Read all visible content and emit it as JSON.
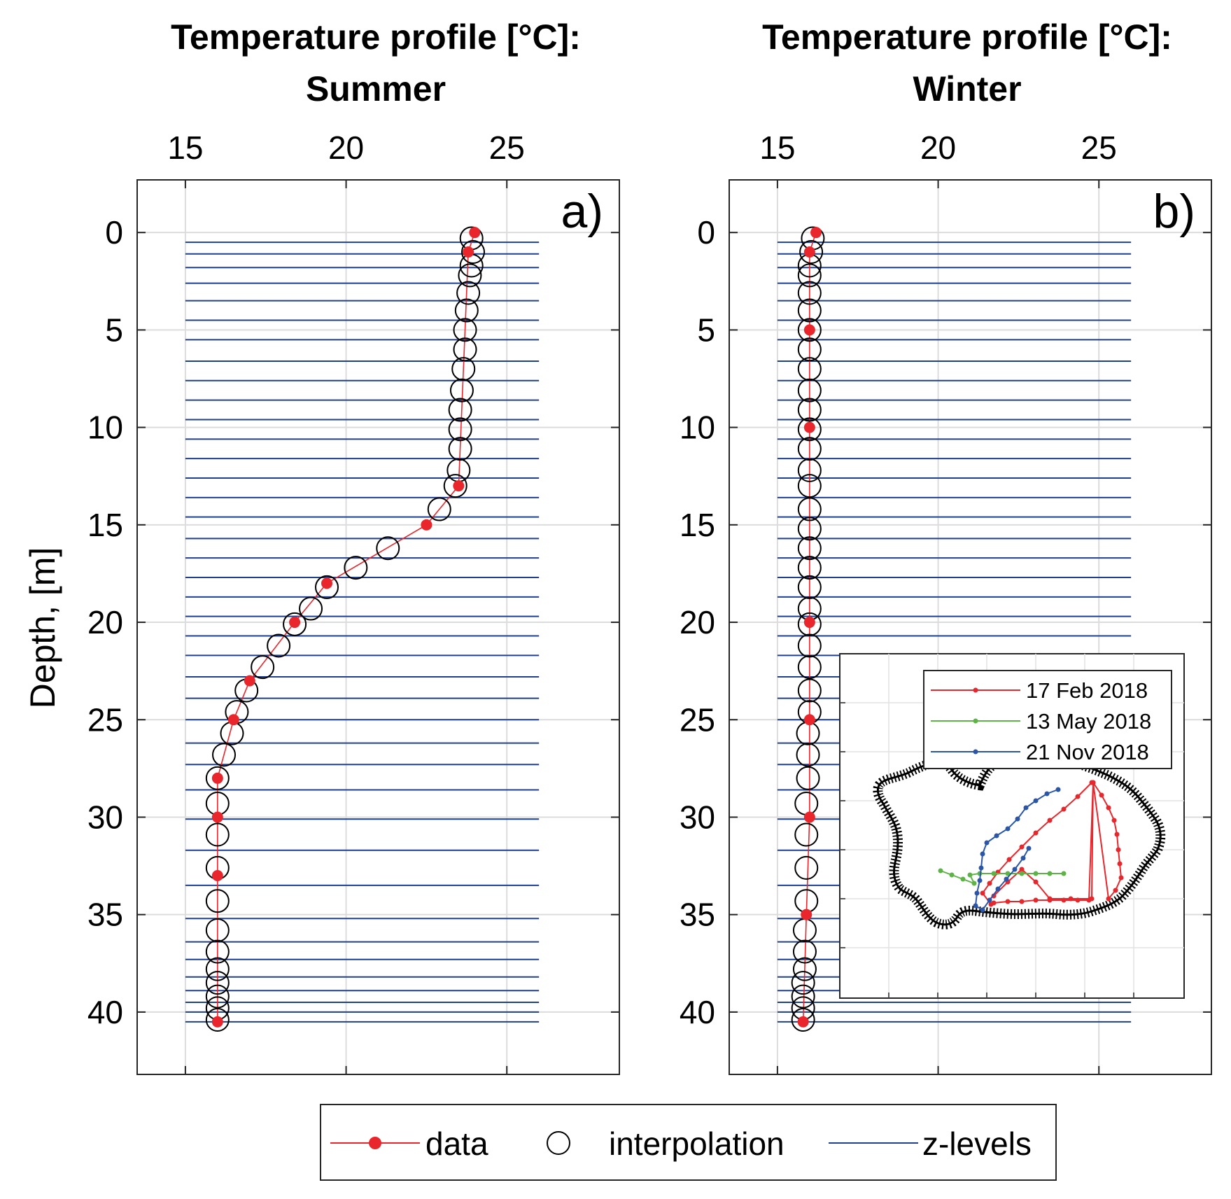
{
  "chart_data": [
    {
      "type": "line",
      "panel_label": "a)",
      "title": [
        "Temperature profile [°C]:",
        "Summer"
      ],
      "xlabel": "",
      "ylabel": "Depth, [m]",
      "xlim": [
        13.5,
        28.5
      ],
      "ylim": [
        -2.7,
        43.2
      ],
      "y_reversed": true,
      "x_axis_location": "top",
      "xticks": [
        15,
        20,
        25
      ],
      "yticks": [
        0,
        5,
        10,
        15,
        20,
        25,
        30,
        35,
        40
      ],
      "grid": true,
      "series": [
        {
          "name": "data",
          "color": "#e8262b",
          "marker": "filled-dot",
          "points": [
            [
              24.0,
              0
            ],
            [
              23.8,
              1
            ],
            [
              23.5,
              13
            ],
            [
              22.5,
              15
            ],
            [
              19.4,
              18
            ],
            [
              18.4,
              20
            ],
            [
              17.0,
              23
            ],
            [
              16.5,
              25
            ],
            [
              16.0,
              28
            ],
            [
              16.0,
              30
            ],
            [
              16.0,
              33
            ],
            [
              16.0,
              40.5
            ]
          ]
        },
        {
          "name": "interpolation",
          "color": "#000000",
          "marker": "open-circle",
          "points": [
            [
              23.9,
              0.3
            ],
            [
              23.95,
              1.0
            ],
            [
              23.9,
              1.7
            ],
            [
              23.85,
              2.2
            ],
            [
              23.8,
              3.1
            ],
            [
              23.75,
              4.0
            ],
            [
              23.7,
              5.0
            ],
            [
              23.7,
              6.0
            ],
            [
              23.65,
              7.0
            ],
            [
              23.6,
              8.1
            ],
            [
              23.55,
              9.1
            ],
            [
              23.55,
              10.1
            ],
            [
              23.55,
              11.1
            ],
            [
              23.5,
              12.2
            ],
            [
              23.4,
              13.0
            ],
            [
              22.9,
              14.2
            ],
            [
              21.3,
              16.2
            ],
            [
              20.3,
              17.2
            ],
            [
              19.4,
              18.2
            ],
            [
              18.9,
              19.3
            ],
            [
              18.4,
              20.1
            ],
            [
              17.9,
              21.2
            ],
            [
              17.4,
              22.3
            ],
            [
              16.9,
              23.5
            ],
            [
              16.6,
              24.6
            ],
            [
              16.45,
              25.7
            ],
            [
              16.2,
              26.8
            ],
            [
              16.0,
              28.0
            ],
            [
              16.0,
              29.3
            ],
            [
              16.0,
              30.9
            ],
            [
              16.0,
              32.6
            ],
            [
              16.0,
              34.3
            ],
            [
              16.0,
              35.8
            ],
            [
              16.0,
              36.9
            ],
            [
              16.0,
              37.8
            ],
            [
              16.0,
              38.5
            ],
            [
              16.0,
              39.2
            ],
            [
              16.0,
              39.8
            ],
            [
              16.0,
              40.4
            ]
          ]
        },
        {
          "name": "z-levels",
          "color": "#1f3f8f",
          "marker": "none",
          "x_range": [
            15.0,
            26.0
          ],
          "depths": [
            0.5,
            1.1,
            1.8,
            2.6,
            3.5,
            4.5,
            5.5,
            6.6,
            7.6,
            8.6,
            9.6,
            10.6,
            11.6,
            12.6,
            13.6,
            14.6,
            15.7,
            16.7,
            17.7,
            18.7,
            19.7,
            20.7,
            21.7,
            22.8,
            23.9,
            25.0,
            26.2,
            27.3,
            28.6,
            30.1,
            31.7,
            33.5,
            35.2,
            36.4,
            37.3,
            38.2,
            38.9,
            39.5,
            40.0,
            40.5
          ]
        }
      ]
    },
    {
      "type": "line",
      "panel_label": "b)",
      "title": [
        "Temperature profile [°C]:",
        "Winter"
      ],
      "xlabel": "",
      "ylabel": "",
      "xlim": [
        13.5,
        28.5
      ],
      "ylim": [
        -2.7,
        43.2
      ],
      "y_reversed": true,
      "x_axis_location": "top",
      "xticks": [
        15,
        20,
        25
      ],
      "yticks": [
        0,
        5,
        10,
        15,
        20,
        25,
        30,
        35,
        40
      ],
      "grid": true,
      "series": [
        {
          "name": "data",
          "color": "#e8262b",
          "marker": "filled-dot",
          "points": [
            [
              16.2,
              0
            ],
            [
              16.0,
              1
            ],
            [
              16.0,
              5
            ],
            [
              16.0,
              10
            ],
            [
              16.0,
              20
            ],
            [
              16.0,
              25
            ],
            [
              16.0,
              30
            ],
            [
              15.9,
              35
            ],
            [
              15.8,
              40.5
            ]
          ]
        },
        {
          "name": "interpolation",
          "color": "#000000",
          "marker": "open-circle",
          "points": [
            [
              16.1,
              0.3
            ],
            [
              16.05,
              1.0
            ],
            [
              16.0,
              1.7
            ],
            [
              16.0,
              2.2
            ],
            [
              16.0,
              3.1
            ],
            [
              16.0,
              4.0
            ],
            [
              16.0,
              5.0
            ],
            [
              16.0,
              6.0
            ],
            [
              16.0,
              7.0
            ],
            [
              16.0,
              8.1
            ],
            [
              16.0,
              9.1
            ],
            [
              16.0,
              10.1
            ],
            [
              16.0,
              11.1
            ],
            [
              16.0,
              12.2
            ],
            [
              16.0,
              13.0
            ],
            [
              16.0,
              14.2
            ],
            [
              16.0,
              15.2
            ],
            [
              16.0,
              16.2
            ],
            [
              16.0,
              17.2
            ],
            [
              16.0,
              18.2
            ],
            [
              16.0,
              19.3
            ],
            [
              16.0,
              20.1
            ],
            [
              16.0,
              21.2
            ],
            [
              16.0,
              22.3
            ],
            [
              16.0,
              23.5
            ],
            [
              16.0,
              24.6
            ],
            [
              15.95,
              25.7
            ],
            [
              15.95,
              26.8
            ],
            [
              15.95,
              28.0
            ],
            [
              15.9,
              29.3
            ],
            [
              15.9,
              30.9
            ],
            [
              15.9,
              32.6
            ],
            [
              15.9,
              34.3
            ],
            [
              15.85,
              35.8
            ],
            [
              15.85,
              36.9
            ],
            [
              15.85,
              37.8
            ],
            [
              15.8,
              38.5
            ],
            [
              15.8,
              39.2
            ],
            [
              15.8,
              39.8
            ],
            [
              15.8,
              40.4
            ]
          ]
        },
        {
          "name": "z-levels",
          "color": "#1f3f8f",
          "marker": "none",
          "x_range": [
            15.0,
            26.0
          ],
          "depths": [
            0.5,
            1.1,
            1.8,
            2.6,
            3.5,
            4.5,
            5.5,
            6.6,
            7.6,
            8.6,
            9.6,
            10.6,
            11.6,
            12.6,
            13.6,
            14.6,
            15.7,
            16.7,
            17.7,
            18.7,
            19.7,
            20.7,
            21.7,
            22.8,
            23.9,
            25.0,
            26.2,
            27.3,
            28.6,
            30.1,
            31.7,
            33.5,
            35.2,
            36.4,
            37.3,
            38.2,
            38.9,
            39.5,
            40.0,
            40.5
          ]
        }
      ]
    }
  ],
  "inset": {
    "legend": [
      {
        "label": "17 Feb 2018",
        "color": "#e8262b"
      },
      {
        "label": "13 May 2018",
        "color": "#5db345"
      },
      {
        "label": "21 Nov 2018",
        "color": "#2b56a8"
      }
    ]
  },
  "legend": [
    {
      "label": "data",
      "color": "#e8262b",
      "marker": "filled-dot"
    },
    {
      "label": "interpolation",
      "color": "#000000",
      "marker": "open-circle"
    },
    {
      "label": "z-levels",
      "color": "#1f3f8f",
      "marker": "none"
    }
  ]
}
